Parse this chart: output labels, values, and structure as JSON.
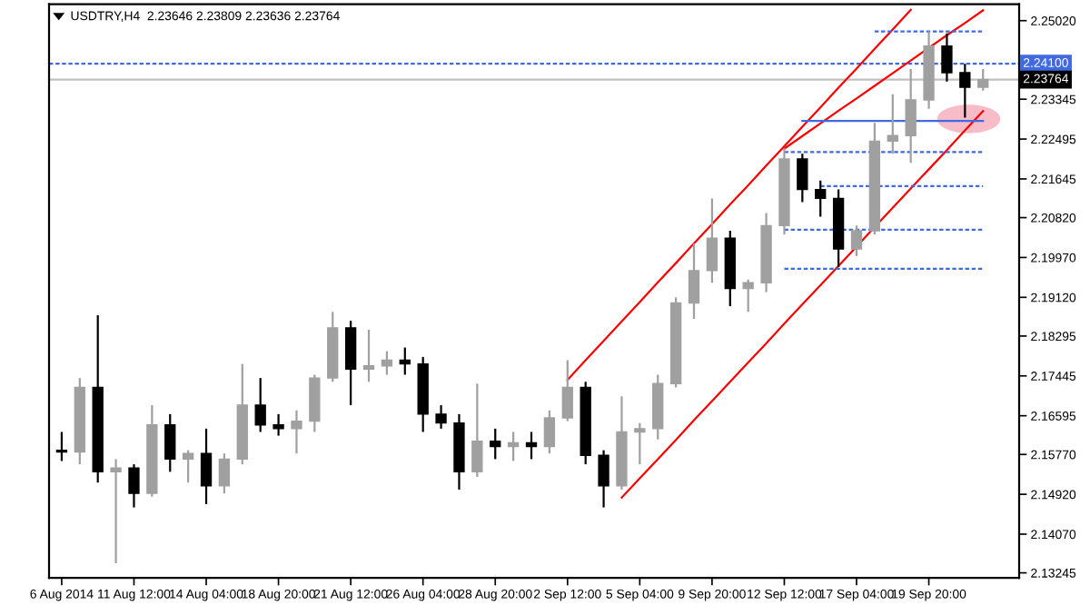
{
  "chart_data": {
    "type": "candlestick",
    "title": "USDTRY,H4  2.23646 2.23809 2.23636 2.23764",
    "categories": [
      "6 Aug 2014",
      null,
      null,
      null,
      "11 Aug 12:00",
      null,
      null,
      null,
      "14 Aug 04:00",
      null,
      null,
      null,
      "18 Aug 20:00",
      null,
      null,
      null,
      "21 Aug 12:00",
      null,
      null,
      null,
      "26 Aug 04:00",
      null,
      null,
      null,
      "28 Aug 20:00",
      null,
      null,
      null,
      "2 Sep 12:00",
      null,
      null,
      null,
      "5 Sep 04:00",
      null,
      null,
      null,
      "9 Sep 20:00",
      null,
      null,
      null,
      "12 Sep 12:00",
      null,
      null,
      null,
      "17 Sep 04:00",
      null,
      null,
      null,
      "19 Sep 20:00",
      null,
      null,
      null
    ],
    "ohlc": [
      [
        2.1586,
        2.1625,
        2.1563,
        2.1582
      ],
      [
        2.1582,
        2.174,
        2.1556,
        2.172
      ],
      [
        2.172,
        2.1874,
        2.1517,
        2.154
      ],
      [
        2.154,
        2.1567,
        2.1345,
        2.1548
      ],
      [
        2.1548,
        2.1556,
        2.1464,
        2.1494
      ],
      [
        2.1494,
        2.1682,
        2.1487,
        2.164
      ],
      [
        2.164,
        2.1663,
        2.154,
        2.1567
      ],
      [
        2.1567,
        2.1586,
        2.1517,
        2.1579
      ],
      [
        2.1579,
        2.1632,
        2.1471,
        2.151
      ],
      [
        2.151,
        2.1579,
        2.1494,
        2.1567
      ],
      [
        2.1567,
        2.177,
        2.1556,
        2.1682
      ],
      [
        2.1682,
        2.174,
        2.1625,
        2.164
      ],
      [
        2.164,
        2.1663,
        2.1617,
        2.1632
      ],
      [
        2.1632,
        2.1671,
        2.1579,
        2.1648
      ],
      [
        2.1648,
        2.1747,
        2.1625,
        2.174
      ],
      [
        2.174,
        2.1881,
        2.1732,
        2.1847
      ],
      [
        2.1847,
        2.1862,
        2.1682,
        2.1759
      ],
      [
        2.1759,
        2.1843,
        2.1732,
        2.1766
      ],
      [
        2.1766,
        2.1797,
        2.1747,
        2.1778
      ],
      [
        2.1778,
        2.1805,
        2.1747,
        2.177
      ],
      [
        2.177,
        2.1785,
        2.1625,
        2.1663
      ],
      [
        2.1663,
        2.1682,
        2.1632,
        2.1644
      ],
      [
        2.1644,
        2.1663,
        2.1502,
        2.154
      ],
      [
        2.154,
        2.1728,
        2.1529,
        2.1605
      ],
      [
        2.1605,
        2.1632,
        2.1567,
        2.1594
      ],
      [
        2.1594,
        2.1625,
        2.1563,
        2.1602
      ],
      [
        2.1602,
        2.1625,
        2.1567,
        2.1594
      ],
      [
        2.1594,
        2.1671,
        2.1579,
        2.1655
      ],
      [
        2.1655,
        2.1778,
        2.1648,
        2.172
      ],
      [
        2.172,
        2.1732,
        2.1556,
        2.1575
      ],
      [
        2.1575,
        2.1586,
        2.1464,
        2.151
      ],
      [
        2.151,
        2.1701,
        2.1502,
        2.1625
      ],
      [
        2.1625,
        2.1644,
        2.1556,
        2.1632
      ],
      [
        2.1632,
        2.1747,
        2.1609,
        2.1728
      ],
      [
        2.1728,
        2.1912,
        2.172,
        2.19
      ],
      [
        2.19,
        2.2027,
        2.1866,
        2.1969
      ],
      [
        2.1969,
        2.2123,
        2.1943,
        2.2038
      ],
      [
        2.2038,
        2.2054,
        2.1893,
        2.1931
      ],
      [
        2.1931,
        2.195,
        2.1881,
        2.1943
      ],
      [
        2.1943,
        2.2092,
        2.1923,
        2.2065
      ],
      [
        2.2065,
        2.223,
        2.2046,
        2.2207
      ],
      [
        2.2207,
        2.2218,
        2.2115,
        2.2142
      ],
      [
        2.2142,
        2.2161,
        2.2084,
        2.2123
      ],
      [
        2.2123,
        2.2142,
        2.1977,
        2.2015
      ],
      [
        2.2015,
        2.2065,
        2.2,
        2.2054
      ],
      [
        2.2054,
        2.2284,
        2.2046,
        2.2245
      ],
      [
        2.2245,
        2.2345,
        2.2218,
        2.2257
      ],
      [
        2.2257,
        2.2399,
        2.2199,
        2.2333
      ],
      [
        2.2333,
        2.2479,
        2.2314,
        2.2448
      ],
      [
        2.2448,
        2.2475,
        2.2372,
        2.2391
      ],
      [
        2.2391,
        2.241,
        2.2295,
        2.236
      ],
      [
        2.236,
        2.2399,
        2.2353,
        2.23764
      ]
    ],
    "colors": [
      "#000000",
      "#a0a0a0",
      "#000000",
      "#a0a0a0",
      "#000000",
      "#a0a0a0",
      "#000000",
      "#a0a0a0",
      "#000000",
      "#a0a0a0",
      "#a0a0a0",
      "#000000",
      "#000000",
      "#a0a0a0",
      "#a0a0a0",
      "#a0a0a0",
      "#000000",
      "#a0a0a0",
      "#a0a0a0",
      "#000000",
      "#000000",
      "#000000",
      "#000000",
      "#a0a0a0",
      "#000000",
      "#a0a0a0",
      "#000000",
      "#a0a0a0",
      "#a0a0a0",
      "#000000",
      "#000000",
      "#a0a0a0",
      "#a0a0a0",
      "#a0a0a0",
      "#a0a0a0",
      "#a0a0a0",
      "#a0a0a0",
      "#000000",
      "#a0a0a0",
      "#a0a0a0",
      "#a0a0a0",
      "#000000",
      "#000000",
      "#000000",
      "#a0a0a0",
      "#a0a0a0",
      "#a0a0a0",
      "#a0a0a0",
      "#a0a0a0",
      "#000000",
      "#000000",
      "#a0a0a0"
    ],
    "series": [
      {
        "type": "line",
        "color": "#ff0000",
        "line_style": "solid",
        "values": [
          null,
          null,
          null,
          null,
          null,
          null,
          null,
          null,
          null,
          null,
          null,
          null,
          null,
          null,
          null,
          null,
          null,
          null,
          null,
          null,
          null,
          null,
          null,
          null,
          null,
          null,
          null,
          null,
          2.1736,
          2.1778,
          2.1819,
          2.1861,
          2.1902,
          2.1944,
          2.1985,
          2.2027,
          2.2068,
          2.211,
          2.2151,
          2.2193,
          2.2234,
          2.2276,
          2.2317,
          2.2359,
          2.24,
          2.2442,
          2.2483,
          2.2525,
          null,
          null,
          null,
          null
        ]
      },
      {
        "type": "line",
        "color": "#ff0000",
        "line_style": "solid",
        "values": [
          null,
          null,
          null,
          null,
          null,
          null,
          null,
          null,
          null,
          null,
          null,
          null,
          null,
          null,
          null,
          null,
          null,
          null,
          null,
          null,
          null,
          null,
          null,
          null,
          null,
          null,
          null,
          null,
          null,
          null,
          null,
          null,
          null,
          null,
          null,
          null,
          null,
          null,
          null,
          null,
          2.2229,
          2.2256,
          2.2283,
          2.231,
          2.2336,
          2.2363,
          2.239,
          2.2417,
          2.2444,
          2.2471,
          2.2497,
          2.2524
        ]
      },
      {
        "type": "line",
        "color": "#ff0000",
        "line_style": "solid",
        "values": [
          null,
          null,
          null,
          null,
          null,
          null,
          null,
          null,
          null,
          null,
          null,
          null,
          null,
          null,
          null,
          null,
          null,
          null,
          null,
          null,
          null,
          null,
          null,
          null,
          null,
          null,
          null,
          null,
          null,
          null,
          null,
          2.1485,
          2.1526,
          2.1567,
          2.1608,
          2.165,
          2.1691,
          2.1732,
          2.1773,
          2.1814,
          2.1856,
          2.1897,
          2.1938,
          2.1979,
          2.202,
          2.2062,
          2.2103,
          2.2144,
          2.2185,
          2.2226,
          2.2268,
          2.2309
        ]
      },
      {
        "type": "line",
        "color": "#4169e1",
        "line_style": "dashed",
        "values": [
          null,
          null,
          null,
          null,
          null,
          null,
          null,
          null,
          null,
          null,
          null,
          null,
          null,
          null,
          null,
          null,
          null,
          null,
          null,
          null,
          null,
          null,
          null,
          null,
          null,
          null,
          null,
          null,
          null,
          null,
          null,
          null,
          null,
          null,
          null,
          null,
          null,
          null,
          null,
          null,
          null,
          null,
          null,
          null,
          null,
          2.2479,
          2.2479,
          2.2479,
          2.2479,
          2.2479,
          2.2479,
          2.2479
        ]
      },
      {
        "type": "line",
        "color": "#4169e1",
        "line_style": "solid",
        "values": [
          null,
          null,
          null,
          null,
          null,
          null,
          null,
          null,
          null,
          null,
          null,
          null,
          null,
          null,
          null,
          null,
          null,
          null,
          null,
          null,
          null,
          null,
          null,
          null,
          null,
          null,
          null,
          null,
          null,
          null,
          null,
          null,
          null,
          null,
          null,
          null,
          null,
          null,
          null,
          null,
          null,
          2.2288,
          2.2288,
          2.2288,
          2.2288,
          2.2288,
          2.2288,
          2.2288,
          2.2288,
          2.2288,
          2.2288,
          2.2288
        ]
      },
      {
        "type": "line",
        "color": "#4169e1",
        "line_style": "dashed",
        "values": [
          null,
          null,
          null,
          null,
          null,
          null,
          null,
          null,
          null,
          null,
          null,
          null,
          null,
          null,
          null,
          null,
          null,
          null,
          null,
          null,
          null,
          null,
          null,
          null,
          null,
          null,
          null,
          null,
          null,
          null,
          null,
          null,
          null,
          null,
          null,
          null,
          null,
          null,
          null,
          null,
          2.2222,
          2.2222,
          2.2222,
          2.2222,
          2.2222,
          2.2222,
          2.2222,
          2.2222,
          2.2222,
          2.2222,
          2.2222,
          2.2222
        ]
      },
      {
        "type": "line",
        "color": "#4169e1",
        "line_style": "dashed",
        "values": [
          null,
          null,
          null,
          null,
          null,
          null,
          null,
          null,
          null,
          null,
          null,
          null,
          null,
          null,
          null,
          null,
          null,
          null,
          null,
          null,
          null,
          null,
          null,
          null,
          null,
          null,
          null,
          null,
          null,
          null,
          null,
          null,
          null,
          null,
          null,
          null,
          null,
          null,
          null,
          null,
          null,
          null,
          2.2149,
          2.2149,
          2.2149,
          2.2149,
          2.2149,
          2.2149,
          2.2149,
          2.2149,
          2.2149,
          2.2149
        ]
      },
      {
        "type": "line",
        "color": "#4169e1",
        "line_style": "dashed",
        "values": [
          null,
          null,
          null,
          null,
          null,
          null,
          null,
          null,
          null,
          null,
          null,
          null,
          null,
          null,
          null,
          null,
          null,
          null,
          null,
          null,
          null,
          null,
          null,
          null,
          null,
          null,
          null,
          null,
          null,
          null,
          null,
          null,
          null,
          null,
          null,
          null,
          null,
          null,
          null,
          null,
          2.2056,
          2.2056,
          2.2056,
          2.2056,
          2.2056,
          2.2056,
          2.2056,
          2.2056,
          2.2056,
          2.2056,
          2.2056,
          2.2056
        ]
      },
      {
        "type": "line",
        "color": "#4169e1",
        "line_style": "dashed",
        "values": [
          null,
          null,
          null,
          null,
          null,
          null,
          null,
          null,
          null,
          null,
          null,
          null,
          null,
          null,
          null,
          null,
          null,
          null,
          null,
          null,
          null,
          null,
          null,
          null,
          null,
          null,
          null,
          null,
          null,
          null,
          null,
          null,
          null,
          null,
          null,
          null,
          null,
          null,
          null,
          null,
          2.1973,
          2.1973,
          2.1973,
          2.1973,
          2.1973,
          2.1973,
          2.1973,
          2.1973,
          2.1973,
          2.1973,
          2.1973,
          2.1973
        ]
      }
    ],
    "ref_lines": [
      {
        "axis": "y",
        "value": 2.241,
        "label": "2.24100",
        "color": "#4169e1",
        "line_style": "dashed"
      },
      {
        "axis": "y",
        "value": 2.23764,
        "label": "2.23764",
        "color": "#c0c0c0",
        "line_style": "solid"
      }
    ],
    "ylim": [
      2.1314,
      2.2537
    ],
    "yticks": [
      {
        "value": 2.2502,
        "label": "2.25020"
      },
      {
        "value": 2.23345,
        "label": "2.23345"
      },
      {
        "value": 2.22495,
        "label": "2.22495"
      },
      {
        "value": 2.21645,
        "label": "2.21645"
      },
      {
        "value": 2.2082,
        "label": "2.20820"
      },
      {
        "value": 2.1997,
        "label": "2.19970"
      },
      {
        "value": 2.1912,
        "label": "2.19120"
      },
      {
        "value": 2.18295,
        "label": "2.18295"
      },
      {
        "value": 2.17445,
        "label": "2.17445"
      },
      {
        "value": 2.16595,
        "label": "2.16595"
      },
      {
        "value": 2.1577,
        "label": "2.15770"
      },
      {
        "value": 2.1492,
        "label": "2.14920"
      },
      {
        "value": 2.1407,
        "label": "2.14070"
      },
      {
        "value": 2.13245,
        "label": "2.13245"
      }
    ]
  }
}
